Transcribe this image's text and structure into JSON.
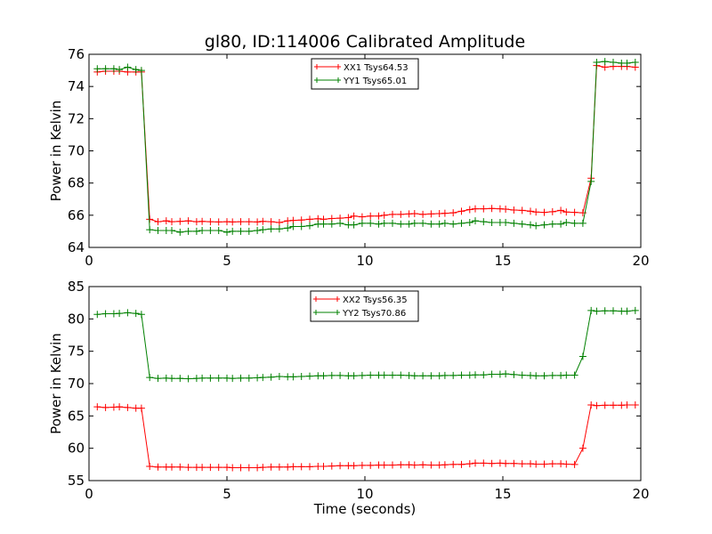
{
  "figure": {
    "title": "gl80, ID:114006 Calibrated Amplitude"
  },
  "chart_data": [
    {
      "type": "line",
      "title": "gl80, ID:114006 Calibrated Amplitude",
      "xlabel": "",
      "ylabel": "Power in Kelvin",
      "xlim": [
        0,
        20
      ],
      "ylim": [
        64,
        76
      ],
      "xticks": [
        "0",
        "5",
        "10",
        "15",
        "20"
      ],
      "yticks": [
        "64",
        "66",
        "68",
        "70",
        "72",
        "74",
        "76"
      ],
      "legend_position": "top-center",
      "grid": false,
      "x": [
        0.3,
        0.6,
        0.9,
        1.1,
        1.4,
        1.7,
        1.9,
        2.2,
        2.5,
        2.8,
        3.0,
        3.3,
        3.6,
        3.9,
        4.1,
        4.4,
        4.7,
        5.0,
        5.2,
        5.5,
        5.8,
        6.1,
        6.3,
        6.6,
        6.9,
        7.2,
        7.4,
        7.7,
        8.0,
        8.3,
        8.5,
        8.8,
        9.1,
        9.4,
        9.6,
        9.9,
        10.2,
        10.5,
        10.7,
        11.0,
        11.3,
        11.6,
        11.8,
        12.1,
        12.4,
        12.7,
        12.9,
        13.2,
        13.5,
        13.8,
        14.0,
        14.3,
        14.6,
        14.9,
        15.1,
        15.4,
        15.7,
        16.0,
        16.2,
        16.5,
        16.8,
        17.1,
        17.3,
        17.6,
        17.9,
        18.2,
        18.4,
        18.7,
        19.0,
        19.3,
        19.5,
        19.8
      ],
      "series": [
        {
          "name": "XX1 Tsys64.53",
          "color": "#ff0000",
          "values": [
            74.9,
            74.95,
            74.95,
            74.95,
            74.9,
            74.9,
            74.9,
            65.75,
            65.6,
            65.65,
            65.6,
            65.62,
            65.65,
            65.6,
            65.62,
            65.6,
            65.58,
            65.6,
            65.58,
            65.6,
            65.6,
            65.58,
            65.62,
            65.6,
            65.55,
            65.65,
            65.68,
            65.7,
            65.75,
            65.78,
            65.75,
            65.8,
            65.82,
            65.85,
            65.95,
            65.9,
            65.95,
            65.95,
            66.0,
            66.05,
            66.05,
            66.08,
            66.1,
            66.05,
            66.08,
            66.1,
            66.12,
            66.15,
            66.25,
            66.35,
            66.4,
            66.4,
            66.42,
            66.4,
            66.38,
            66.32,
            66.3,
            66.25,
            66.2,
            66.18,
            66.22,
            66.3,
            66.2,
            66.18,
            66.15,
            68.3,
            75.3,
            75.2,
            75.25,
            75.25,
            75.25,
            75.2
          ]
        },
        {
          "name": "YY1 Tsys65.01",
          "color": "#008000",
          "values": [
            75.1,
            75.1,
            75.1,
            75.05,
            75.2,
            75.05,
            75.0,
            65.1,
            65.05,
            65.05,
            65.05,
            64.95,
            65.0,
            65.0,
            65.05,
            65.05,
            65.05,
            64.95,
            65.0,
            65.0,
            65.0,
            65.05,
            65.1,
            65.15,
            65.15,
            65.2,
            65.3,
            65.3,
            65.35,
            65.45,
            65.45,
            65.45,
            65.5,
            65.4,
            65.4,
            65.5,
            65.5,
            65.45,
            65.5,
            65.5,
            65.45,
            65.45,
            65.5,
            65.5,
            65.45,
            65.45,
            65.5,
            65.45,
            65.5,
            65.55,
            65.65,
            65.6,
            65.55,
            65.55,
            65.55,
            65.5,
            65.45,
            65.4,
            65.35,
            65.4,
            65.45,
            65.45,
            65.55,
            65.5,
            65.5,
            68.1,
            75.5,
            75.55,
            75.5,
            75.45,
            75.45,
            75.5
          ]
        }
      ]
    },
    {
      "type": "line",
      "title": "",
      "xlabel": "Time (seconds)",
      "ylabel": "Power in Kelvin",
      "xlim": [
        0,
        20
      ],
      "ylim": [
        55,
        85
      ],
      "xticks": [
        "0",
        "5",
        "10",
        "15",
        "20"
      ],
      "yticks": [
        "55",
        "60",
        "65",
        "70",
        "75",
        "80",
        "85"
      ],
      "legend_position": "top-center",
      "grid": false,
      "x": [
        0.3,
        0.6,
        0.9,
        1.1,
        1.4,
        1.7,
        1.9,
        2.2,
        2.5,
        2.8,
        3.0,
        3.3,
        3.6,
        3.9,
        4.1,
        4.4,
        4.7,
        5.0,
        5.2,
        5.5,
        5.8,
        6.1,
        6.3,
        6.6,
        6.9,
        7.2,
        7.4,
        7.7,
        8.0,
        8.3,
        8.5,
        8.8,
        9.1,
        9.4,
        9.6,
        9.9,
        10.2,
        10.5,
        10.7,
        11.0,
        11.3,
        11.6,
        11.8,
        12.1,
        12.4,
        12.7,
        12.9,
        13.2,
        13.5,
        13.8,
        14.0,
        14.3,
        14.6,
        14.9,
        15.1,
        15.4,
        15.7,
        16.0,
        16.2,
        16.5,
        16.8,
        17.1,
        17.3,
        17.6,
        17.9,
        18.2,
        18.4,
        18.7,
        19.0,
        19.3,
        19.5,
        19.8
      ],
      "series": [
        {
          "name": "XX2 Tsys56.35",
          "color": "#ff0000",
          "values": [
            66.4,
            66.3,
            66.35,
            66.4,
            66.3,
            66.2,
            66.2,
            57.2,
            57.1,
            57.1,
            57.1,
            57.1,
            57.05,
            57.05,
            57.05,
            57.05,
            57.05,
            57.05,
            57.0,
            57.0,
            57.0,
            57.0,
            57.05,
            57.1,
            57.1,
            57.1,
            57.15,
            57.15,
            57.15,
            57.2,
            57.2,
            57.25,
            57.3,
            57.3,
            57.3,
            57.35,
            57.35,
            57.4,
            57.4,
            57.4,
            57.45,
            57.45,
            57.4,
            57.45,
            57.4,
            57.4,
            57.45,
            57.5,
            57.5,
            57.6,
            57.7,
            57.7,
            57.65,
            57.7,
            57.65,
            57.65,
            57.6,
            57.6,
            57.55,
            57.55,
            57.6,
            57.6,
            57.55,
            57.5,
            60.0,
            66.7,
            66.6,
            66.65,
            66.65,
            66.65,
            66.7,
            66.7
          ]
        },
        {
          "name": "YY2 Tsys70.86",
          "color": "#008000",
          "values": [
            80.7,
            80.8,
            80.8,
            80.85,
            80.95,
            80.85,
            80.7,
            70.95,
            70.8,
            70.85,
            70.8,
            70.8,
            70.75,
            70.8,
            70.85,
            70.85,
            70.85,
            70.85,
            70.8,
            70.85,
            70.85,
            70.9,
            70.95,
            71.0,
            71.1,
            71.05,
            71.05,
            71.1,
            71.15,
            71.2,
            71.2,
            71.25,
            71.25,
            71.2,
            71.2,
            71.25,
            71.3,
            71.3,
            71.3,
            71.3,
            71.3,
            71.25,
            71.2,
            71.2,
            71.2,
            71.2,
            71.25,
            71.25,
            71.3,
            71.3,
            71.35,
            71.35,
            71.45,
            71.45,
            71.5,
            71.4,
            71.3,
            71.25,
            71.2,
            71.2,
            71.25,
            71.25,
            71.3,
            71.3,
            74.2,
            81.3,
            81.2,
            81.25,
            81.25,
            81.2,
            81.2,
            81.3
          ]
        }
      ]
    }
  ]
}
